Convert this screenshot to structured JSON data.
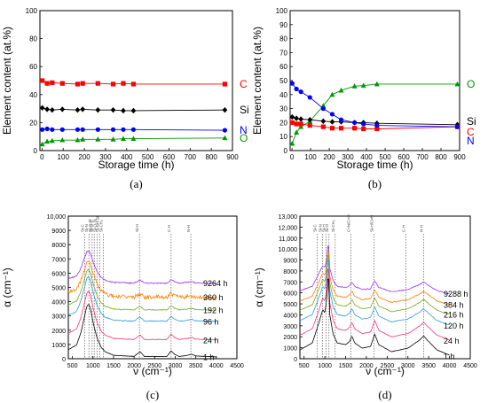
{
  "chart_data": [
    {
      "panel": "(a)",
      "type": "line",
      "xlabel": "Storage time (h)",
      "ylabel": "Element content (at.%)",
      "xlim": [
        -10,
        900
      ],
      "ylim": [
        0,
        100
      ],
      "xticks": [
        "0",
        "100",
        "200",
        "300",
        "400",
        "500",
        "600",
        "700",
        "800",
        "900"
      ],
      "yticks": [
        "0",
        "20",
        "40",
        "60",
        "80",
        "100"
      ],
      "series": [
        {
          "name": "C",
          "color": "#ff0000",
          "marker": "square",
          "x": [
            1,
            24,
            48,
            96,
            168,
            192,
            264,
            336,
            384,
            432,
            864
          ],
          "y": [
            50,
            48,
            48.5,
            48,
            47.5,
            48,
            48,
            47.5,
            48,
            47.5,
            47.5
          ]
        },
        {
          "name": "Si",
          "color": "#000000",
          "marker": "diamond",
          "x": [
            1,
            24,
            48,
            96,
            168,
            192,
            264,
            336,
            384,
            432,
            864
          ],
          "y": [
            30.5,
            29.5,
            29,
            29.5,
            29,
            29.5,
            29,
            29,
            28.5,
            28.5,
            29
          ]
        },
        {
          "name": "N",
          "color": "#0000ff",
          "marker": "circle",
          "x": [
            1,
            24,
            48,
            96,
            168,
            192,
            264,
            336,
            384,
            432,
            864
          ],
          "y": [
            15,
            15.5,
            15,
            15,
            15,
            15,
            15,
            15,
            15,
            15,
            14.5
          ]
        },
        {
          "name": "O",
          "color": "#009900",
          "marker": "triangle",
          "x": [
            1,
            24,
            48,
            96,
            168,
            192,
            264,
            336,
            384,
            432,
            864
          ],
          "y": [
            4.5,
            6.5,
            7,
            7.5,
            7.5,
            8,
            8,
            8,
            8.5,
            8.5,
            9
          ]
        }
      ]
    },
    {
      "panel": "(b)",
      "type": "line",
      "xlabel": "Storage time (h)",
      "ylabel": "Element content (at.%)",
      "xlim": [
        -10,
        900
      ],
      "ylim": [
        0,
        100
      ],
      "xticks": [
        "0",
        "100",
        "200",
        "300",
        "400",
        "500",
        "600",
        "700",
        "800",
        "900"
      ],
      "yticks": [
        "0",
        "10",
        "20",
        "30",
        "40",
        "50",
        "60",
        "70",
        "80",
        "90",
        "100"
      ],
      "series": [
        {
          "name": "O",
          "color": "#009900",
          "marker": "triangle",
          "x": [
            1,
            24,
            48,
            96,
            168,
            216,
            264,
            336,
            384,
            456,
            888
          ],
          "y": [
            5,
            13,
            17,
            21,
            32,
            40,
            43,
            46,
            46.5,
            47.5,
            47.5
          ]
        },
        {
          "name": "Si",
          "color": "#000000",
          "marker": "diamond",
          "x": [
            1,
            24,
            48,
            96,
            168,
            216,
            264,
            336,
            384,
            456,
            888
          ],
          "y": [
            24,
            23,
            22.5,
            22,
            21,
            20.5,
            20.5,
            20,
            20,
            19.5,
            18.5
          ]
        },
        {
          "name": "C",
          "color": "#ff0000",
          "marker": "square",
          "x": [
            1,
            24,
            48,
            96,
            168,
            216,
            264,
            336,
            384,
            456,
            888
          ],
          "y": [
            20,
            19,
            19,
            18,
            17,
            16,
            16,
            16,
            15.5,
            15.5,
            17
          ]
        },
        {
          "name": "N",
          "color": "#0000ff",
          "marker": "circle",
          "x": [
            1,
            24,
            48,
            96,
            168,
            216,
            264,
            336,
            384,
            456,
            888
          ],
          "y": [
            48,
            44,
            42,
            38,
            30,
            26,
            22,
            20,
            19,
            18,
            17
          ]
        }
      ]
    },
    {
      "panel": "(c)",
      "type": "line",
      "xlabel": "ν (cm⁻¹)",
      "ylabel": "α (cm⁻¹)",
      "xlim": [
        400,
        4500
      ],
      "ylim": [
        0,
        10000
      ],
      "xticks": [
        "500",
        "1000",
        "1500",
        "2000",
        "2500",
        "3000",
        "3500",
        "4000",
        "4500"
      ],
      "yticks": [
        "0",
        "1000",
        "2000",
        "3000",
        "4000",
        "5000",
        "6000",
        "7000",
        "8000",
        "9000",
        "10,000"
      ],
      "peak_lines": [
        {
          "x": 800,
          "label": "Si-C"
        },
        {
          "x": 900,
          "label": "Si-N"
        },
        {
          "x": 980,
          "label": "Si-O-Si"
        },
        {
          "x": 1030,
          "label": "Si-O-C"
        },
        {
          "x": 1100,
          "label": "Si-O-Si"
        },
        {
          "x": 1170,
          "label": "Si-NH-Si"
        },
        {
          "x": 1250,
          "label": "Si-CH₃"
        },
        {
          "x": 2130,
          "label": "Si-H"
        },
        {
          "x": 2900,
          "label": "C-H"
        },
        {
          "x": 3380,
          "label": "N-H"
        }
      ],
      "series": [
        {
          "name": "9264 h",
          "color": "#9933ff",
          "offset": 5200,
          "noise": 40
        },
        {
          "name": "360 h",
          "color": "#ff8000",
          "offset": 4200,
          "noise": 140
        },
        {
          "name": "192 h",
          "color": "#77aa22",
          "offset": 3300,
          "noise": 30
        },
        {
          "name": "96 h",
          "color": "#3399dd",
          "offset": 2500,
          "noise": 30
        },
        {
          "name": "24 h",
          "color": "#ff3377",
          "offset": 1200,
          "noise": 20
        },
        {
          "name": "1 h",
          "color": "#000000",
          "offset": 0,
          "noise": 10
        }
      ],
      "base_shape": [
        [
          400,
          400
        ],
        [
          600,
          600
        ],
        [
          700,
          1100
        ],
        [
          800,
          1900
        ],
        [
          850,
          2300
        ],
        [
          900,
          2400
        ],
        [
          950,
          2100
        ],
        [
          1000,
          1600
        ],
        [
          1100,
          900
        ],
        [
          1200,
          500
        ],
        [
          1300,
          300
        ],
        [
          1500,
          150
        ],
        [
          2000,
          100
        ],
        [
          2100,
          250
        ],
        [
          2150,
          300
        ],
        [
          2250,
          100
        ],
        [
          2800,
          100
        ],
        [
          2900,
          350
        ],
        [
          2980,
          200
        ],
        [
          3100,
          100
        ],
        [
          3300,
          150
        ],
        [
          3400,
          200
        ],
        [
          3500,
          120
        ],
        [
          4000,
          80
        ]
      ]
    },
    {
      "panel": "(d)",
      "type": "line",
      "xlabel": "ν (cm⁻¹)",
      "ylabel": "α (cm⁻¹)",
      "xlim": [
        400,
        4500
      ],
      "ylim": [
        0,
        13000
      ],
      "xticks": [
        "500",
        "1000",
        "1500",
        "2000",
        "2500",
        "3000",
        "3500",
        "4000",
        "4500"
      ],
      "yticks": [
        "0",
        "1000",
        "2000",
        "3000",
        "4000",
        "5000",
        "6000",
        "7000",
        "8000",
        "9000",
        "10,000",
        "11,000",
        "12,000",
        "13,000"
      ],
      "peak_lines": [
        {
          "x": 820,
          "label": "Si-C"
        },
        {
          "x": 940,
          "label": "Si-N"
        },
        {
          "x": 1030,
          "label": "Si-H"
        },
        {
          "x": 1100,
          "label": "Si-O"
        },
        {
          "x": 1250,
          "label": "Si-CH₃"
        },
        {
          "x": 1630,
          "label": "C=N/C=O"
        },
        {
          "x": 2180,
          "label": "Si-H/C≡N"
        },
        {
          "x": 2950,
          "label": "C-H"
        },
        {
          "x": 3380,
          "label": "N-H"
        }
      ],
      "series": [
        {
          "name": "9288 h",
          "color": "#9933ff",
          "offset": 5700,
          "noise": 40
        },
        {
          "name": "384 h",
          "color": "#ff8000",
          "offset": 4700,
          "noise": 40
        },
        {
          "name": "216 h",
          "color": "#77aa22",
          "offset": 3800,
          "noise": 30
        },
        {
          "name": "120 h",
          "color": "#3399dd",
          "offset": 2800,
          "noise": 30
        },
        {
          "name": "24 h",
          "color": "#ff3377",
          "offset": 1400,
          "noise": 20
        },
        {
          "name": "1 h",
          "color": "#000000",
          "offset": 0,
          "noise": 10
        }
      ],
      "base_shape": [
        [
          400,
          500
        ],
        [
          700,
          900
        ],
        [
          850,
          2000
        ],
        [
          950,
          2800
        ],
        [
          1000,
          2600
        ],
        [
          1050,
          3500
        ],
        [
          1080,
          5000
        ],
        [
          1120,
          2500
        ],
        [
          1200,
          1400
        ],
        [
          1300,
          900
        ],
        [
          1500,
          800
        ],
        [
          1600,
          1000
        ],
        [
          1650,
          1300
        ],
        [
          1720,
          900
        ],
        [
          1900,
          600
        ],
        [
          2100,
          700
        ],
        [
          2200,
          1400
        ],
        [
          2300,
          800
        ],
        [
          2600,
          400
        ],
        [
          3000,
          600
        ],
        [
          3300,
          1100
        ],
        [
          3380,
          1300
        ],
        [
          3450,
          1100
        ],
        [
          3700,
          500
        ],
        [
          4000,
          200
        ]
      ]
    }
  ]
}
